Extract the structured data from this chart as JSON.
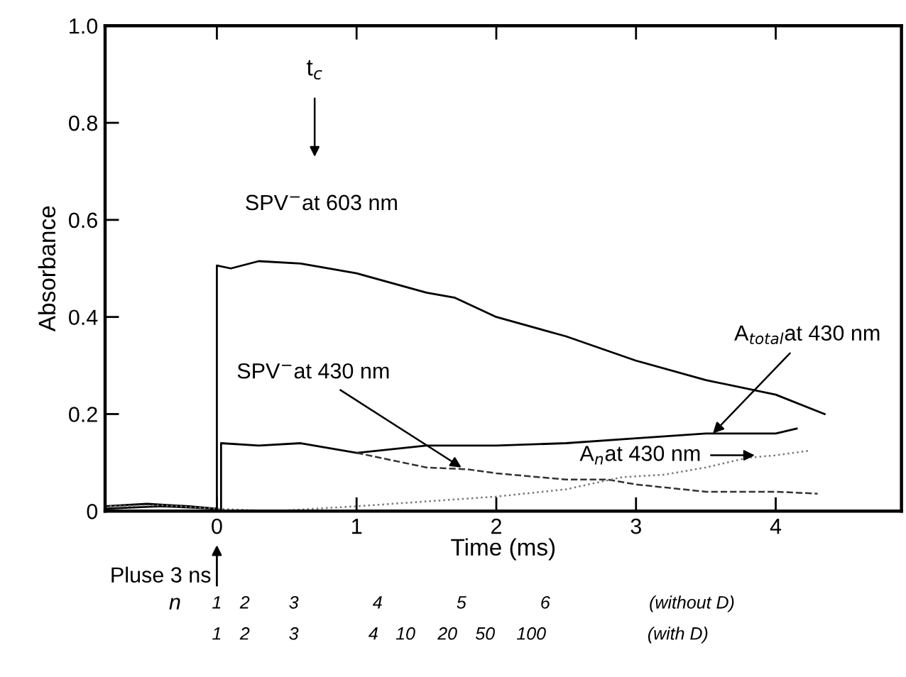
{
  "chart_data": {
    "type": "line",
    "xlabel": "Time (ms)",
    "ylabel": "Absorbance",
    "xlim": [
      -0.8,
      4.9
    ],
    "ylim": [
      0,
      1.0
    ],
    "xticks": [
      0,
      1,
      2,
      3,
      4
    ],
    "yticks": [
      0,
      0.2,
      0.4,
      0.6,
      0.8,
      {
        "value": 1,
        "label": "1.0"
      }
    ],
    "grid": false,
    "legend": false,
    "marker": "none",
    "series": [
      {
        "color": "#000000",
        "line_style": "solid",
        "x": [
          -0.8,
          -0.5,
          -0.2,
          0,
          0,
          0.1,
          0.3,
          0.6,
          1.0,
          1.5,
          1.7,
          2.0,
          2.5,
          3.0,
          3.5,
          4.0,
          4.35
        ],
        "values": [
          0.01,
          0.015,
          0.01,
          0.005,
          0.506,
          0.5,
          0.515,
          0.51,
          0.49,
          0.45,
          0.44,
          0.4,
          0.36,
          0.31,
          0.27,
          0.24,
          0.2
        ]
      },
      {
        "color": "#000000",
        "line_style": "solid",
        "x": [
          -0.8,
          -0.4,
          0,
          0.03,
          0.03,
          0.3,
          0.6,
          1.0,
          1.5,
          2.0,
          2.5,
          3.0,
          3.5,
          4.0,
          4.15
        ],
        "values": [
          0.005,
          0.01,
          0.005,
          0.0,
          0.14,
          0.135,
          0.14,
          0.12,
          0.135,
          0.135,
          0.14,
          0.15,
          0.16,
          0.16,
          0.17
        ]
      },
      {
        "color": "#333333",
        "line_style": "dashed",
        "x": [
          1.0,
          1.5,
          1.8,
          2.0,
          2.5,
          2.8,
          3.0,
          3.5,
          4.0,
          4.3
        ],
        "values": [
          0.12,
          0.09,
          0.086,
          0.078,
          0.065,
          0.065,
          0.055,
          0.04,
          0.04,
          0.036
        ]
      },
      {
        "color": "#777777",
        "line_style": "dotted",
        "x": [
          -0.8,
          -0.4,
          0,
          0.4,
          1.0,
          1.5,
          2.0,
          2.5,
          2.9,
          3.2,
          3.5,
          3.8,
          4.0,
          4.25
        ],
        "values": [
          0.01,
          0.012,
          0.005,
          0.0,
          0.01,
          0.02,
          0.03,
          0.045,
          0.07,
          0.075,
          0.09,
          0.11,
          0.115,
          0.125
        ]
      }
    ],
    "annotations": [
      {
        "text": "SPV$^{−}$at 603 nm",
        "x": 0.75,
        "y": 0.51
      },
      "t$_{c}$",
      {
        "text": "SPV$^{−}$at 430 nm",
        "x": 1.75,
        "y": 0.09
      },
      {
        "text": "A$_{total}$at 430 nm",
        "x": 3.55,
        "y": 0.16
      },
      {
        "text": "A$_{n}$at 430 nm",
        "x": 3.85,
        "y": 0.115
      },
      "Pluse 3 ns",
      "n",
      "1",
      "2",
      "3",
      "4",
      "5",
      "6",
      "(without D)",
      "1",
      "2",
      "3",
      "4",
      "10",
      "20",
      "50",
      "100",
      "(with D)"
    ]
  }
}
